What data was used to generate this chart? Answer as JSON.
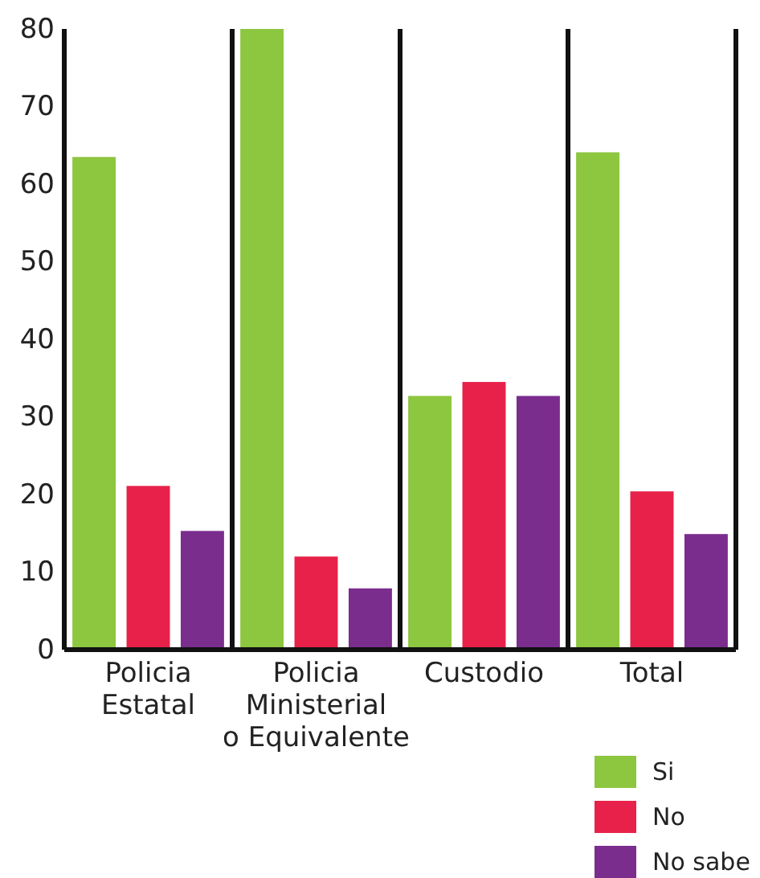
{
  "chart_data": {
    "type": "bar",
    "categories": [
      "Policia Estatal",
      "Policia Ministerial o Equivalente",
      "Custodio",
      "Total"
    ],
    "series": [
      {
        "name": "Si",
        "color": "#8dc63f",
        "values": [
          63.5,
          80,
          32.7,
          64.1
        ]
      },
      {
        "name": "No",
        "color": "#e8214a",
        "values": [
          21.1,
          12,
          34.5,
          20.4
        ]
      },
      {
        "name": "No sabe",
        "color": "#7b2d8e",
        "values": [
          15.3,
          7.9,
          32.7,
          14.9
        ]
      }
    ],
    "ylim": [
      0,
      80
    ],
    "yticks": [
      0,
      10,
      20,
      30,
      40,
      50,
      60,
      70,
      80
    ],
    "grid": false,
    "legend": "bottom right"
  }
}
